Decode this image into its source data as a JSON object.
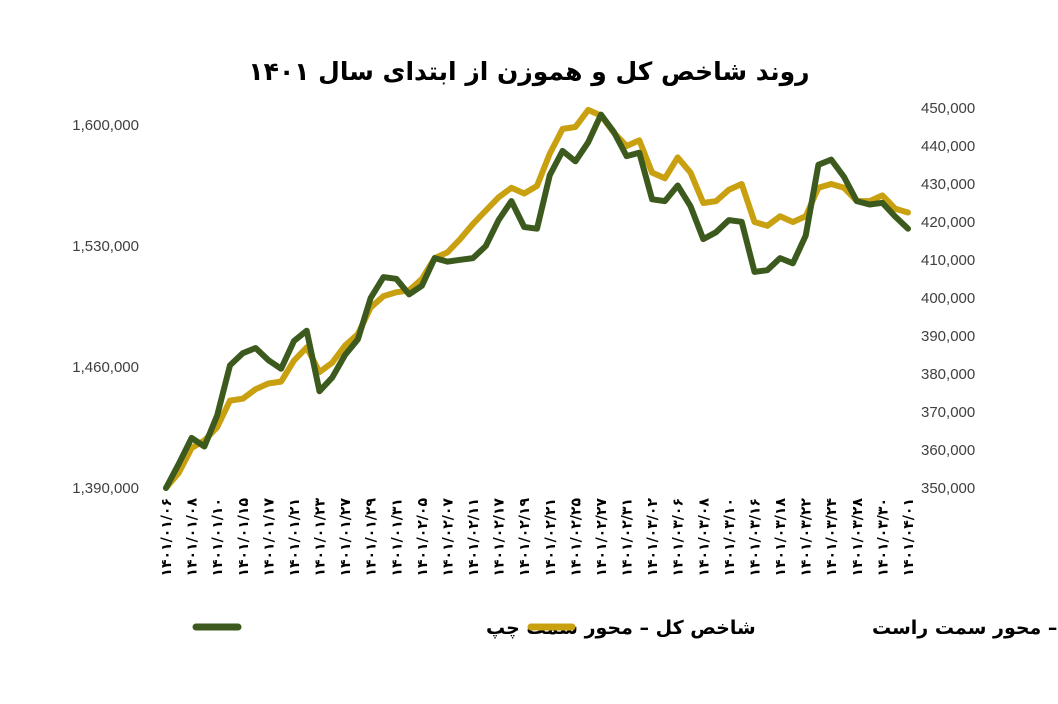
{
  "chart_data": {
    "type": "line",
    "title": "روند شاخص کل و هموزن از ابتدای سال ۱۴۰۱",
    "legend_placement": "bottom",
    "grid": false,
    "colors": {
      "total": "#3D5A1E",
      "equal": "#C9A010"
    },
    "y_left": {
      "ylim": [
        1390000,
        1600000
      ],
      "ticks": [
        "1,390,000",
        "1,460,000",
        "1,530,000",
        "1,600,000"
      ]
    },
    "y_right": {
      "ylim": [
        350000,
        450000
      ],
      "ticks": [
        "350,000",
        "360,000",
        "370,000",
        "380,000",
        "390,000",
        "400,000",
        "410,000",
        "420,000",
        "430,000",
        "440,000",
        "450,000"
      ]
    },
    "x_tick_labels": [
      "۱۴۰۱/۰۱/۰۶",
      "۱۴۰۱/۰۱/۰۸",
      "۱۴۰۱/۰۱/۱۰",
      "۱۴۰۱/۰۱/۱۵",
      "۱۴۰۱/۰۱/۱۷",
      "۱۴۰۱/۰۱/۲۱",
      "۱۴۰۱/۰۱/۲۳",
      "۱۴۰۱/۰۱/۲۷",
      "۱۴۰۱/۰۱/۲۹",
      "۱۴۰۱/۰۱/۳۱",
      "۱۴۰۱/۰۲/۰۵",
      "۱۴۰۱/۰۲/۰۷",
      "۱۴۰۱/۰۲/۱۱",
      "۱۴۰۱/۰۲/۱۷",
      "۱۴۰۱/۰۲/۱۹",
      "۱۴۰۱/۰۲/۲۱",
      "۱۴۰۱/۰۲/۲۵",
      "۱۴۰۱/۰۲/۲۷",
      "۱۴۰۱/۰۲/۳۱",
      "۱۴۰۱/۰۳/۰۲",
      "۱۴۰۱/۰۳/۰۶",
      "۱۴۰۱/۰۳/۰۸",
      "۱۴۰۱/۰۳/۱۰",
      "۱۴۰۱/۰۳/۱۶",
      "۱۴۰۱/۰۳/۱۸",
      "۱۴۰۱/۰۳/۲۲",
      "۱۴۰۱/۰۳/۲۴",
      "۱۴۰۱/۰۳/۲۸",
      "۱۴۰۱/۰۳/۳۰",
      "۱۴۰۱/۰۴/۰۱"
    ],
    "series": [
      {
        "name": "شاخص کل – محور سمت چپ",
        "key": "total",
        "axis": "left",
        "values": [
          1390000,
          1404000,
          1419000,
          1414000,
          1432000,
          1461000,
          1468000,
          1471000,
          1464000,
          1459000,
          1475000,
          1481000,
          1446000,
          1454000,
          1467000,
          1476000,
          1500000,
          1512000,
          1511000,
          1502000,
          1507000,
          1523000,
          1521000,
          1522000,
          1523000,
          1530000,
          1545000,
          1556000,
          1541000,
          1540000,
          1571000,
          1585000,
          1579000,
          1590000,
          1606000,
          1596000,
          1582000,
          1584000,
          1557000,
          1556000,
          1565000,
          1553000,
          1534000,
          1538000,
          1545000,
          1544000,
          1515000,
          1516000,
          1523000,
          1520000,
          1536000,
          1577000,
          1580000,
          1570000,
          1556000,
          1554000,
          1555000,
          1547000,
          1540000
        ]
      },
      {
        "name": "شاخص هموزن – محور سمت راست",
        "key": "equal",
        "axis": "right",
        "values": [
          350000,
          354000,
          360500,
          362500,
          366000,
          373000,
          373500,
          376000,
          377500,
          378000,
          383500,
          387000,
          380500,
          383000,
          387500,
          390500,
          397500,
          400500,
          401500,
          402000,
          405000,
          410500,
          412000,
          415500,
          419500,
          423000,
          426500,
          429000,
          427500,
          429500,
          438000,
          444500,
          445000,
          449500,
          448000,
          443500,
          440000,
          441500,
          433000,
          431500,
          437000,
          433000,
          425000,
          425500,
          428500,
          430000,
          420000,
          419000,
          421500,
          420000,
          421500,
          429000,
          430000,
          429000,
          425500,
          425500,
          427000,
          423500,
          422500
        ]
      }
    ]
  }
}
